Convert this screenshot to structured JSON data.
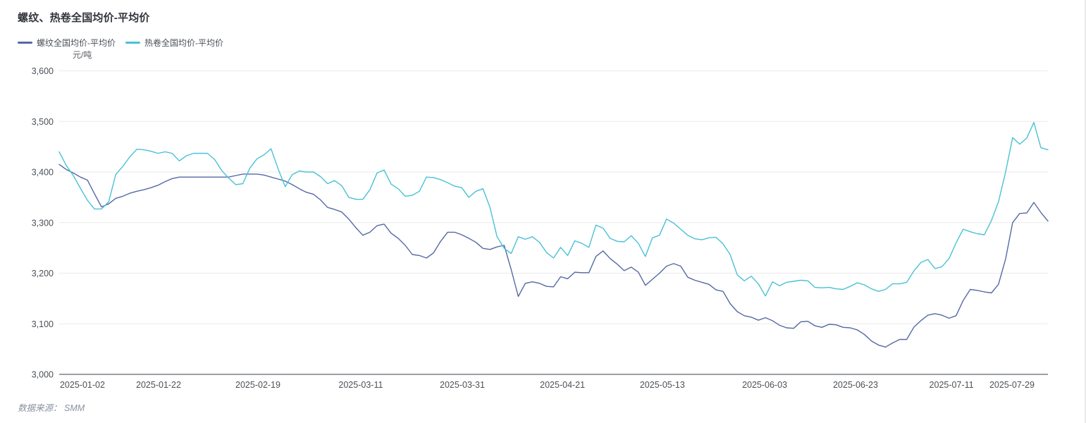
{
  "header": {
    "title": "螺纹、热卷全国均价-平均价"
  },
  "legend": {
    "items": [
      {
        "label": "螺纹全国均价-平均价",
        "color": "#5569a5"
      },
      {
        "label": "热卷全国均价-平均价",
        "color": "#49c1d6"
      }
    ]
  },
  "y_axis_unit": "元/吨",
  "footer": {
    "prefix": "数据来源：",
    "source": "SMM"
  },
  "chart_data": {
    "type": "line",
    "title": "螺纹、热卷全国均价-平均价",
    "xlabel": "",
    "ylabel": "元/吨",
    "ylim": [
      3000,
      3600
    ],
    "grid": true,
    "legend_position": "top-left",
    "colors": {
      "grid": "#eaeaec",
      "axis": "#3a3f47",
      "tick_text": "#4b5056"
    },
    "y_ticks": [
      {
        "label": "3,000",
        "value": 3000
      },
      {
        "label": "3,100",
        "value": 3100
      },
      {
        "label": "3,200",
        "value": 3200
      },
      {
        "label": "3,300",
        "value": 3300
      },
      {
        "label": "3,400",
        "value": 3400
      },
      {
        "label": "3,500",
        "value": 3500
      },
      {
        "label": "3,600",
        "value": 3600
      }
    ],
    "x_ticks": [
      {
        "label": "2025-01-02",
        "pos": 0.0235
      },
      {
        "label": "2025-01-22",
        "pos": 0.1005
      },
      {
        "label": "2025-02-19",
        "pos": 0.201
      },
      {
        "label": "2025-03-11",
        "pos": 0.305
      },
      {
        "label": "2025-03-31",
        "pos": 0.4077
      },
      {
        "label": "2025-04-21",
        "pos": 0.509
      },
      {
        "label": "2025-05-13",
        "pos": 0.61
      },
      {
        "label": "2025-06-03",
        "pos": 0.7135
      },
      {
        "label": "2025-06-23",
        "pos": 0.8054
      },
      {
        "label": "2025-07-11",
        "pos": 0.9024
      },
      {
        "label": "2025-07-29",
        "pos": 0.9636
      }
    ],
    "series": [
      {
        "name": "螺纹全国均价-平均价",
        "color": "#5569a5",
        "values": [
          3415,
          3405,
          3398,
          3390,
          3384,
          3357,
          3331,
          3337,
          3348,
          3352,
          3358,
          3362,
          3365,
          3369,
          3374,
          3381,
          3387,
          3390,
          3390,
          3390,
          3390,
          3390,
          3390,
          3390,
          3390,
          3393,
          3396,
          3396,
          3396,
          3394,
          3390,
          3386,
          3382,
          3375,
          3367,
          3360,
          3356,
          3345,
          3330,
          3326,
          3321,
          3307,
          3290,
          3275,
          3281,
          3294,
          3297,
          3279,
          3269,
          3255,
          3237,
          3235,
          3230,
          3240,
          3263,
          3281,
          3281,
          3276,
          3269,
          3261,
          3249,
          3247,
          3252,
          3255,
          3207,
          3154,
          3180,
          3183,
          3180,
          3174,
          3173,
          3193,
          3189,
          3202,
          3201,
          3201,
          3233,
          3244,
          3229,
          3218,
          3205,
          3212,
          3202,
          3176,
          3188,
          3200,
          3214,
          3219,
          3214,
          3192,
          3186,
          3182,
          3178,
          3167,
          3164,
          3140,
          3124,
          3116,
          3113,
          3107,
          3112,
          3106,
          3097,
          3092,
          3091,
          3104,
          3105,
          3096,
          3093,
          3099,
          3098,
          3093,
          3092,
          3088,
          3079,
          3066,
          3058,
          3054,
          3062,
          3069,
          3069,
          3093,
          3106,
          3117,
          3120,
          3117,
          3111,
          3116,
          3146,
          3168,
          3166,
          3163,
          3161,
          3178,
          3228,
          3300,
          3318,
          3319,
          3340,
          3320,
          3303
        ]
      },
      {
        "name": "热卷全国均价-平均价",
        "color": "#49c1d6",
        "values": [
          3440,
          3413,
          3393,
          3368,
          3344,
          3327,
          3327,
          3341,
          3395,
          3411,
          3430,
          3445,
          3444,
          3441,
          3437,
          3440,
          3437,
          3422,
          3432,
          3437,
          3437,
          3437,
          3425,
          3403,
          3388,
          3375,
          3377,
          3408,
          3426,
          3434,
          3446,
          3406,
          3371,
          3395,
          3402,
          3400,
          3400,
          3391,
          3377,
          3383,
          3373,
          3350,
          3346,
          3346,
          3365,
          3398,
          3404,
          3376,
          3367,
          3352,
          3354,
          3362,
          3390,
          3389,
          3385,
          3379,
          3372,
          3369,
          3350,
          3362,
          3367,
          3330,
          3272,
          3249,
          3239,
          3272,
          3267,
          3272,
          3261,
          3241,
          3230,
          3251,
          3235,
          3264,
          3259,
          3251,
          3295,
          3289,
          3269,
          3263,
          3262,
          3274,
          3259,
          3233,
          3270,
          3275,
          3307,
          3299,
          3287,
          3275,
          3268,
          3266,
          3270,
          3271,
          3258,
          3237,
          3197,
          3185,
          3194,
          3179,
          3155,
          3183,
          3175,
          3182,
          3184,
          3186,
          3185,
          3172,
          3171,
          3172,
          3169,
          3168,
          3174,
          3181,
          3177,
          3169,
          3164,
          3168,
          3179,
          3179,
          3182,
          3204,
          3221,
          3227,
          3209,
          3213,
          3229,
          3260,
          3287,
          3282,
          3278,
          3276,
          3304,
          3341,
          3400,
          3468,
          3455,
          3467,
          3498,
          3448,
          3444
        ]
      }
    ]
  }
}
